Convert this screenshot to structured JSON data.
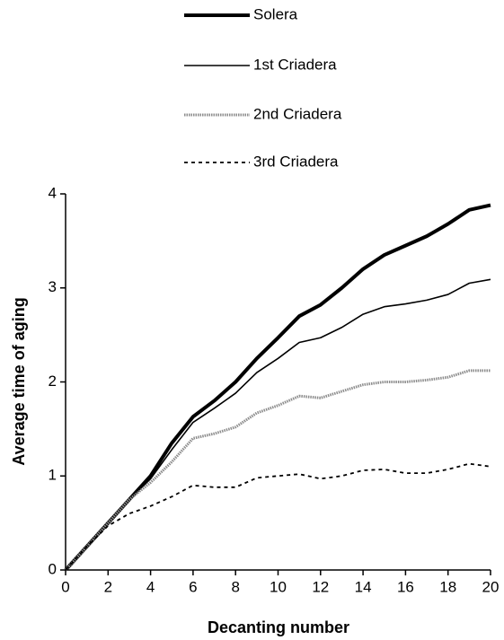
{
  "chart_data": {
    "type": "line",
    "xlabel": "Decanting number",
    "ylabel": "Average time of aging",
    "x": [
      0,
      1,
      2,
      3,
      4,
      5,
      6,
      7,
      8,
      9,
      10,
      11,
      12,
      13,
      14,
      15,
      16,
      17,
      18,
      19,
      20
    ],
    "xlim": [
      0,
      20
    ],
    "xticks": [
      0,
      2,
      4,
      6,
      8,
      10,
      12,
      14,
      16,
      18,
      20
    ],
    "ylim": [
      0,
      4
    ],
    "yticks": [
      0,
      1,
      2,
      3,
      4
    ],
    "legend": "top",
    "series": [
      {
        "name": "Solera",
        "color": "#000000",
        "line_style": "bold",
        "values": [
          0,
          0.25,
          0.5,
          0.75,
          1.0,
          1.35,
          1.63,
          1.8,
          2.0,
          2.25,
          2.47,
          2.7,
          2.82,
          3.0,
          3.2,
          3.35,
          3.45,
          3.55,
          3.68,
          3.83,
          3.88
        ]
      },
      {
        "name": "1st Criadera",
        "color": "#000000",
        "line_style": "solid",
        "values": [
          0,
          0.25,
          0.5,
          0.75,
          0.97,
          1.28,
          1.57,
          1.72,
          1.88,
          2.1,
          2.25,
          2.42,
          2.47,
          2.58,
          2.72,
          2.8,
          2.83,
          2.87,
          2.93,
          3.05,
          3.09
        ]
      },
      {
        "name": "2nd Criadera",
        "color": "#8c8c8c",
        "line_style": "dotted",
        "values": [
          0,
          0.25,
          0.5,
          0.75,
          0.93,
          1.15,
          1.4,
          1.45,
          1.52,
          1.67,
          1.75,
          1.85,
          1.83,
          1.9,
          1.97,
          2.0,
          2.0,
          2.02,
          2.05,
          2.12,
          2.12
        ]
      },
      {
        "name": "3rd Criadera",
        "color": "#000000",
        "line_style": "dashed",
        "values": [
          0,
          0.25,
          0.47,
          0.6,
          0.68,
          0.78,
          0.9,
          0.88,
          0.88,
          0.98,
          1.0,
          1.02,
          0.97,
          1.0,
          1.06,
          1.07,
          1.03,
          1.03,
          1.07,
          1.13,
          1.1
        ]
      }
    ]
  }
}
